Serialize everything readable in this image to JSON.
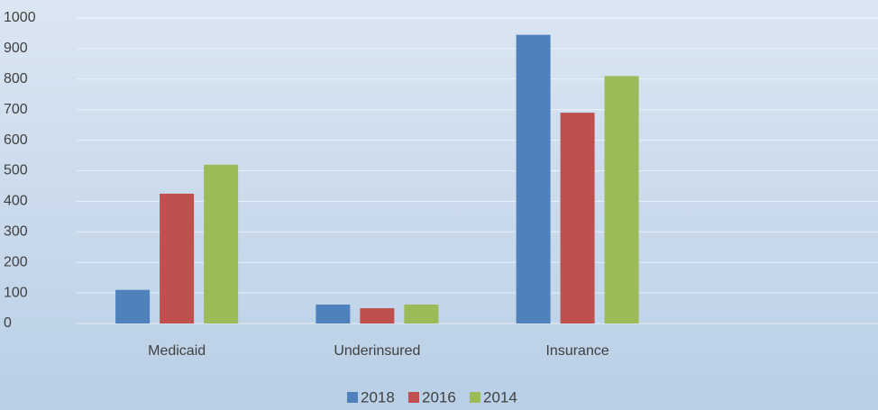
{
  "chart_data": {
    "type": "bar",
    "categories": [
      "Medicaid",
      "Underinsured",
      "Insurance",
      null
    ],
    "series": [
      {
        "name": "2018",
        "color": "#4f81bd",
        "values": [
          110,
          62,
          945,
          null
        ]
      },
      {
        "name": "2016",
        "color": "#c0504d",
        "values": [
          425,
          50,
          690,
          null
        ]
      },
      {
        "name": "2014",
        "color": "#9bbb59",
        "values": [
          520,
          62,
          810,
          null
        ]
      }
    ],
    "ylim": [
      0,
      1000
    ],
    "yticks": [
      0,
      100,
      200,
      300,
      400,
      500,
      600,
      700,
      800,
      900,
      1000
    ],
    "grid": true,
    "legend": "bottom"
  }
}
